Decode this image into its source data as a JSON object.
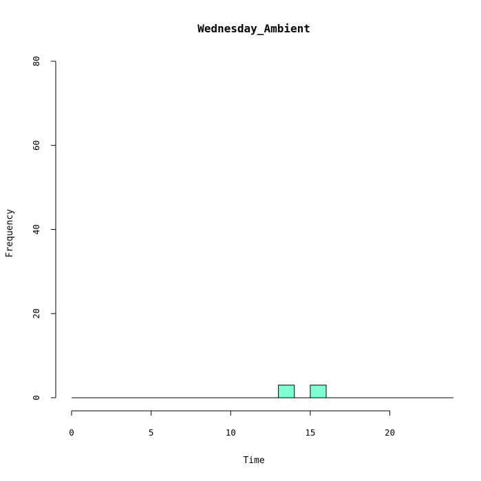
{
  "chart_data": {
    "type": "bar",
    "title": "Wednesday_Ambient",
    "xlabel": "Time",
    "ylabel": "Frequency",
    "xlim": [
      0,
      24
    ],
    "ylim": [
      0,
      80
    ],
    "x_ticks": [
      0,
      5,
      10,
      15,
      20
    ],
    "y_ticks": [
      0,
      20,
      40,
      60,
      80
    ],
    "bin_width": 1,
    "categories": [
      0,
      1,
      2,
      3,
      4,
      5,
      6,
      7,
      8,
      9,
      10,
      11,
      12,
      13,
      14,
      15,
      16,
      17,
      18,
      19,
      20,
      21,
      22,
      23
    ],
    "values": [
      0,
      0,
      0,
      0,
      0,
      0,
      0,
      0,
      0,
      0,
      0,
      0,
      0,
      3,
      0,
      3,
      0,
      0,
      0,
      0,
      0,
      0,
      0,
      0
    ],
    "bar_color": "#7fffd4",
    "grid": false
  }
}
